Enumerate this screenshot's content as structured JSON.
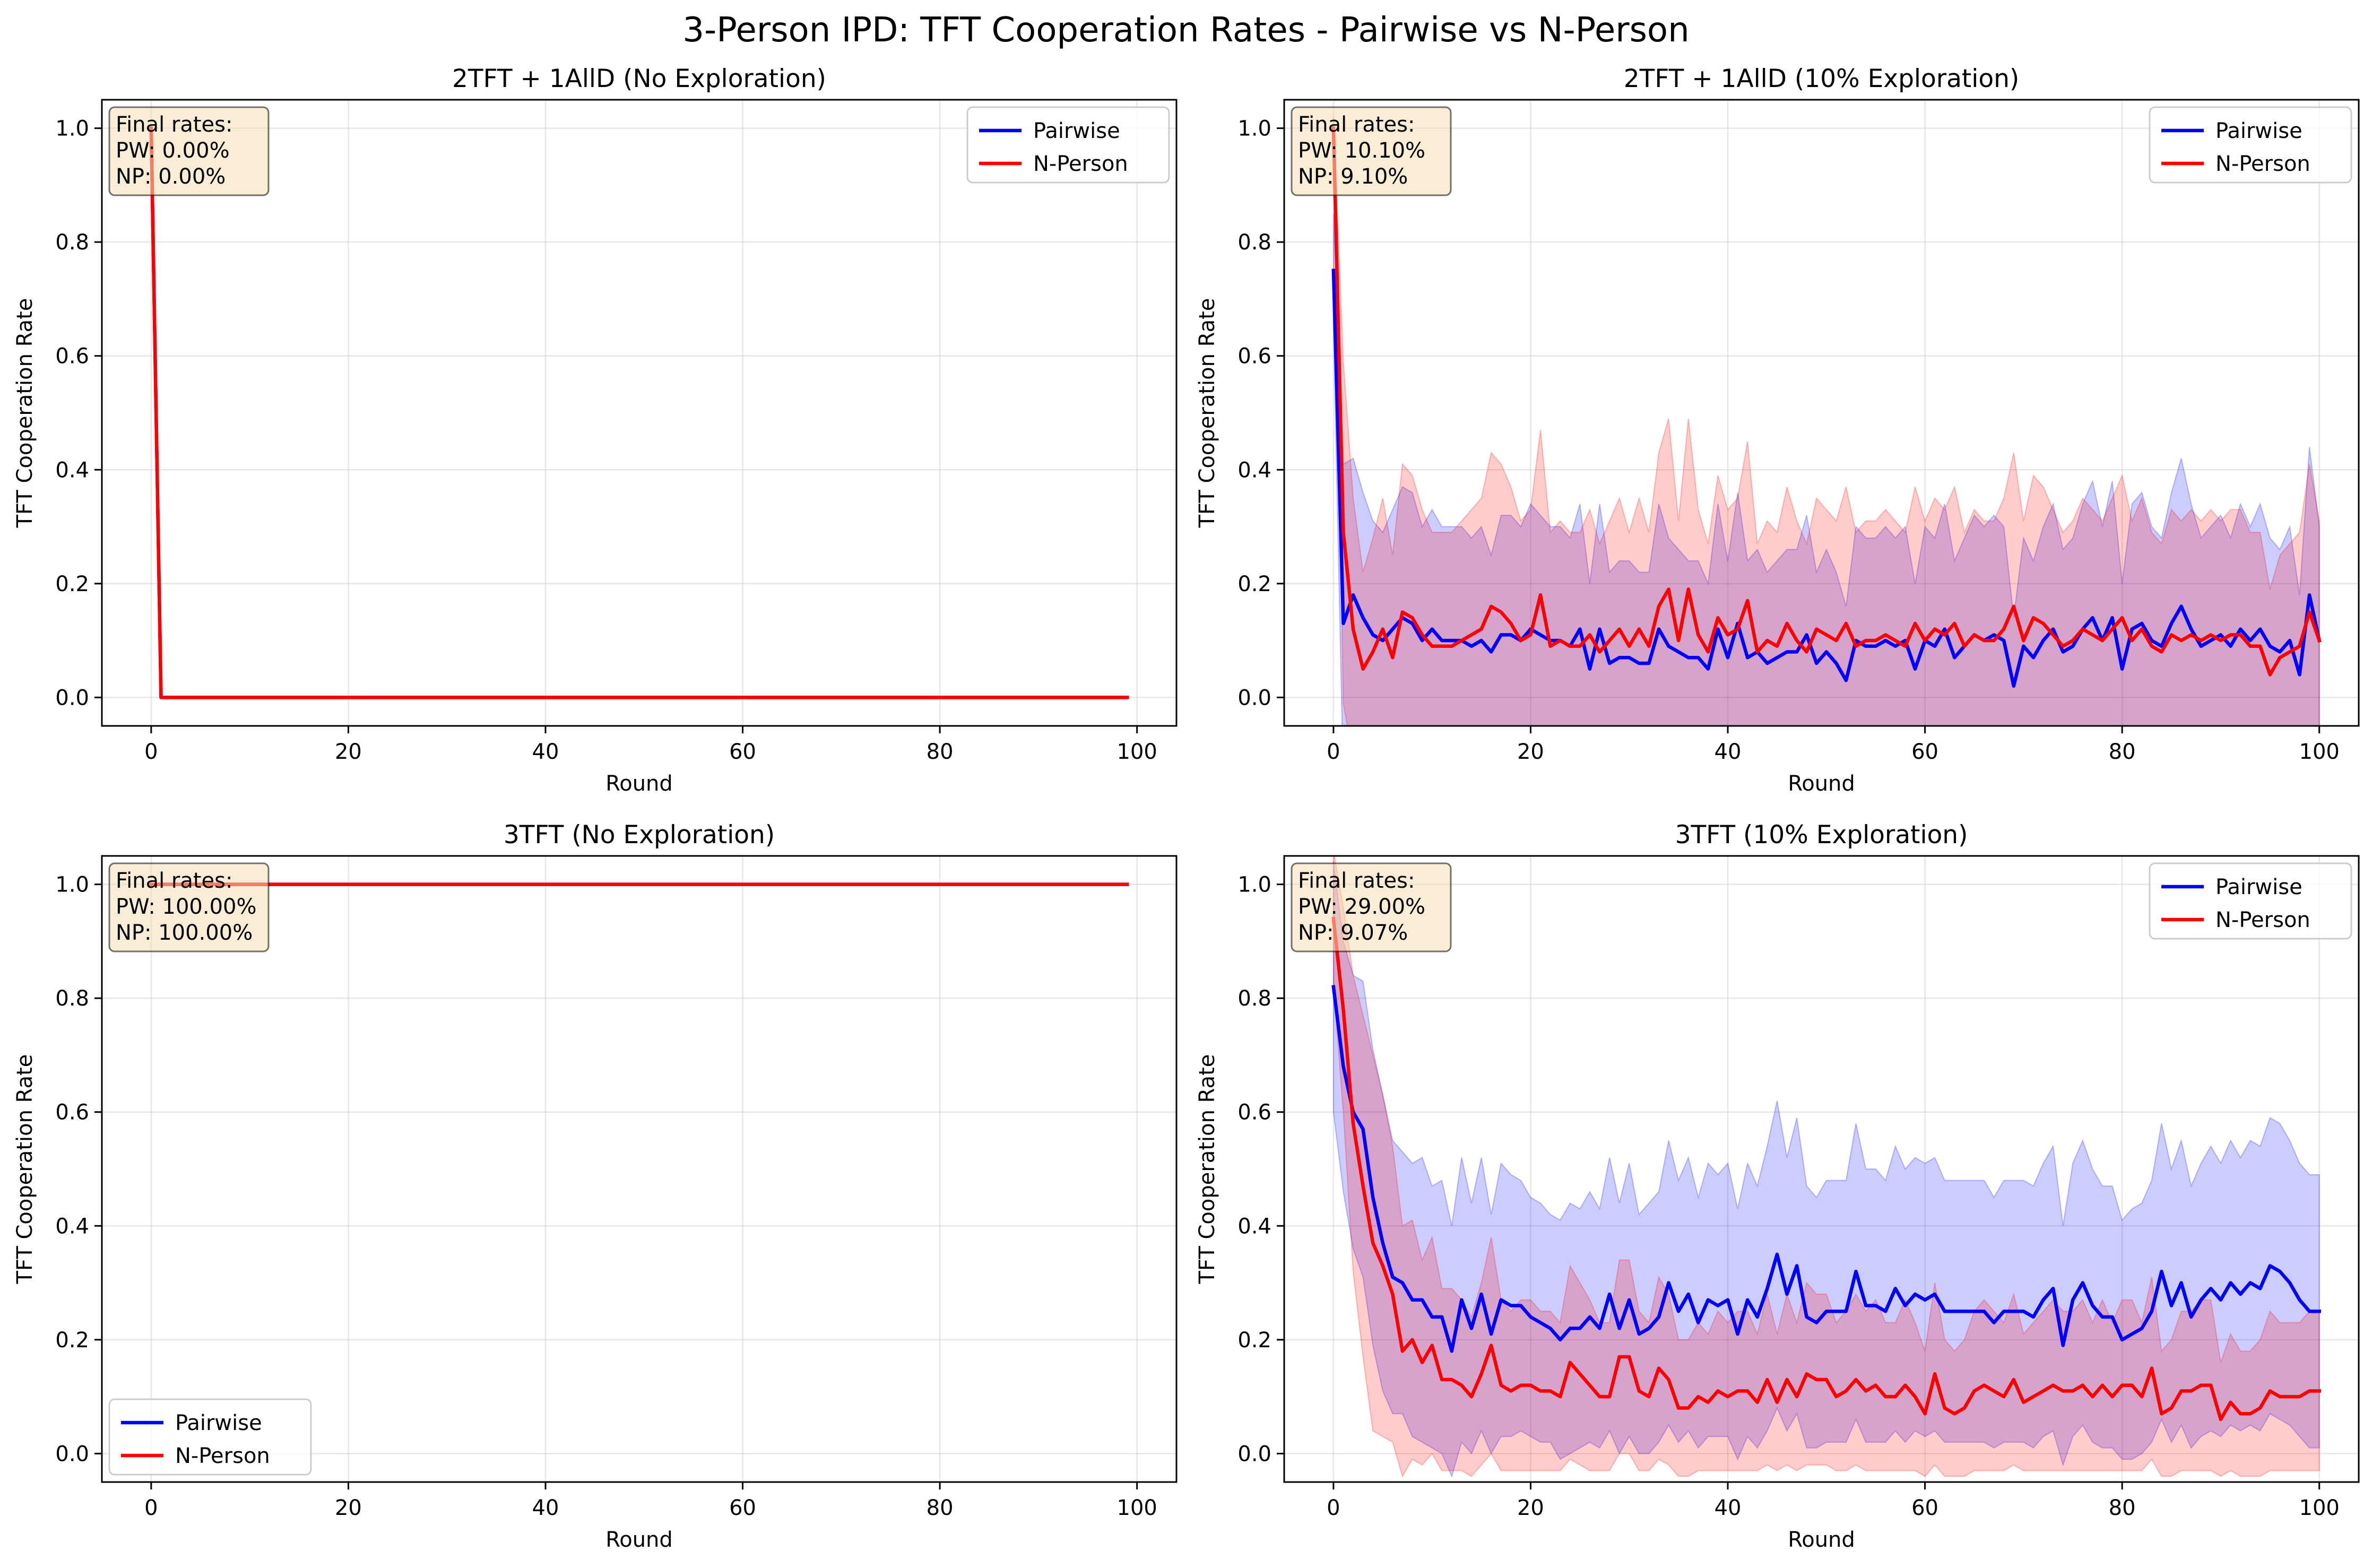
{
  "figure": {
    "suptitle": "3-Person IPD: TFT Cooperation Rates - Pairwise vs N-Person"
  },
  "colors": {
    "pairwise": "#0000ff",
    "nperson": "#ff0000",
    "pairwise_band": "#0000ff",
    "nperson_band": "#ff0000",
    "annotation_box": "#f5deb3",
    "grid": "#b0b0b0"
  },
  "chart_data": [
    {
      "type": "line",
      "title": "2TFT + 1AllD (No Exploration)",
      "xlabel": "Round",
      "ylabel": "TFT Cooperation Rate",
      "xlim": [
        -5,
        104
      ],
      "ylim": [
        -0.05,
        1.05
      ],
      "xticks": [
        0,
        20,
        40,
        60,
        80,
        100
      ],
      "yticks": [
        0.0,
        0.2,
        0.4,
        0.6,
        0.8,
        1.0
      ],
      "grid": true,
      "legend": {
        "position": "upper right",
        "entries": [
          "Pairwise",
          "N-Person"
        ]
      },
      "annotation": [
        "Final rates:",
        "PW: 0.00%",
        "NP: 0.00%"
      ],
      "series": [
        {
          "name": "Pairwise",
          "shape": "drop",
          "start": 1.0,
          "end": 0.0,
          "bands": false
        },
        {
          "name": "N-Person",
          "shape": "drop",
          "start": 1.0,
          "end": 0.0,
          "bands": false
        }
      ]
    },
    {
      "type": "line",
      "title": "2TFT + 1AllD (10% Exploration)",
      "xlabel": "Round",
      "ylabel": "TFT Cooperation Rate",
      "xlim": [
        -5,
        104
      ],
      "ylim": [
        -0.05,
        1.05
      ],
      "xticks": [
        0,
        20,
        40,
        60,
        80,
        100
      ],
      "yticks": [
        0.0,
        0.2,
        0.4,
        0.6,
        0.8,
        1.0
      ],
      "grid": true,
      "legend": {
        "position": "upper right",
        "entries": [
          "Pairwise",
          "N-Person"
        ]
      },
      "annotation": [
        "Final rates:",
        "PW: 10.10%",
        "NP: 9.10%"
      ],
      "series": [
        {
          "name": "Pairwise",
          "y": [
            0.75,
            0.13,
            0.18,
            0.14,
            0.11,
            0.1,
            0.12,
            0.14,
            0.13,
            0.1,
            0.12,
            0.1,
            0.1,
            0.1,
            0.09,
            0.1,
            0.08,
            0.11,
            0.11,
            0.1,
            0.12,
            0.11,
            0.1,
            0.1,
            0.09,
            0.12,
            0.05,
            0.12,
            0.06,
            0.07,
            0.07,
            0.06,
            0.06,
            0.12,
            0.09,
            0.08,
            0.07,
            0.07,
            0.05,
            0.12,
            0.07,
            0.13,
            0.07,
            0.08,
            0.06,
            0.07,
            0.08,
            0.08,
            0.11,
            0.06,
            0.08,
            0.06,
            0.03,
            0.1,
            0.09,
            0.09,
            0.1,
            0.09,
            0.1,
            0.05,
            0.1,
            0.09,
            0.12,
            0.07,
            0.09,
            0.11,
            0.1,
            0.11,
            0.1,
            0.02,
            0.09,
            0.07,
            0.1,
            0.12,
            0.08,
            0.09,
            0.12,
            0.14,
            0.1,
            0.14,
            0.05,
            0.12,
            0.13,
            0.1,
            0.09,
            0.13,
            0.16,
            0.12,
            0.09,
            0.1,
            0.11,
            0.09,
            0.12,
            0.1,
            0.12,
            0.09,
            0.08,
            0.1,
            0.04,
            0.18,
            0.1
          ],
          "sd": [
            0.1,
            0.28,
            0.24,
            0.22,
            0.2,
            0.19,
            0.21,
            0.23,
            0.23,
            0.2,
            0.21,
            0.2,
            0.2,
            0.2,
            0.19,
            0.2,
            0.17,
            0.21,
            0.21,
            0.2,
            0.22,
            0.21,
            0.2,
            0.2,
            0.19,
            0.22,
            0.15,
            0.22,
            0.16,
            0.17,
            0.17,
            0.16,
            0.16,
            0.22,
            0.19,
            0.18,
            0.17,
            0.17,
            0.15,
            0.22,
            0.17,
            0.23,
            0.17,
            0.18,
            0.16,
            0.17,
            0.18,
            0.18,
            0.21,
            0.16,
            0.18,
            0.16,
            0.13,
            0.2,
            0.19,
            0.19,
            0.2,
            0.19,
            0.2,
            0.15,
            0.2,
            0.19,
            0.22,
            0.17,
            0.19,
            0.21,
            0.2,
            0.21,
            0.2,
            0.12,
            0.19,
            0.17,
            0.2,
            0.22,
            0.18,
            0.19,
            0.22,
            0.24,
            0.2,
            0.24,
            0.15,
            0.22,
            0.23,
            0.2,
            0.19,
            0.23,
            0.26,
            0.22,
            0.19,
            0.2,
            0.21,
            0.19,
            0.22,
            0.2,
            0.22,
            0.19,
            0.18,
            0.2,
            0.14,
            0.26,
            0.2
          ]
        },
        {
          "name": "N-Person",
          "y": [
            1.0,
            0.29,
            0.12,
            0.05,
            0.08,
            0.12,
            0.07,
            0.15,
            0.14,
            0.11,
            0.09,
            0.09,
            0.09,
            0.1,
            0.11,
            0.12,
            0.16,
            0.15,
            0.13,
            0.1,
            0.11,
            0.18,
            0.09,
            0.1,
            0.09,
            0.09,
            0.11,
            0.08,
            0.1,
            0.12,
            0.09,
            0.12,
            0.09,
            0.16,
            0.19,
            0.1,
            0.19,
            0.11,
            0.08,
            0.14,
            0.11,
            0.12,
            0.17,
            0.08,
            0.1,
            0.09,
            0.13,
            0.1,
            0.08,
            0.12,
            0.11,
            0.1,
            0.13,
            0.09,
            0.1,
            0.1,
            0.11,
            0.1,
            0.09,
            0.13,
            0.1,
            0.12,
            0.11,
            0.13,
            0.09,
            0.11,
            0.1,
            0.1,
            0.12,
            0.16,
            0.1,
            0.14,
            0.13,
            0.11,
            0.09,
            0.1,
            0.12,
            0.11,
            0.1,
            0.12,
            0.14,
            0.1,
            0.12,
            0.09,
            0.08,
            0.11,
            0.1,
            0.11,
            0.1,
            0.11,
            0.1,
            0.11,
            0.11,
            0.09,
            0.09,
            0.04,
            0.07,
            0.08,
            0.09,
            0.15,
            0.1
          ],
          "sd": [
            0.02,
            0.3,
            0.23,
            0.17,
            0.2,
            0.23,
            0.18,
            0.26,
            0.25,
            0.22,
            0.2,
            0.2,
            0.2,
            0.21,
            0.22,
            0.23,
            0.27,
            0.26,
            0.24,
            0.21,
            0.22,
            0.29,
            0.2,
            0.21,
            0.2,
            0.2,
            0.22,
            0.19,
            0.21,
            0.23,
            0.2,
            0.23,
            0.2,
            0.27,
            0.3,
            0.21,
            0.3,
            0.22,
            0.19,
            0.25,
            0.22,
            0.23,
            0.28,
            0.19,
            0.21,
            0.2,
            0.24,
            0.21,
            0.19,
            0.23,
            0.22,
            0.21,
            0.24,
            0.2,
            0.21,
            0.21,
            0.22,
            0.21,
            0.2,
            0.24,
            0.21,
            0.23,
            0.22,
            0.24,
            0.2,
            0.22,
            0.21,
            0.21,
            0.23,
            0.27,
            0.21,
            0.25,
            0.24,
            0.22,
            0.2,
            0.21,
            0.23,
            0.22,
            0.21,
            0.23,
            0.25,
            0.21,
            0.23,
            0.2,
            0.19,
            0.22,
            0.21,
            0.22,
            0.21,
            0.22,
            0.21,
            0.22,
            0.22,
            0.2,
            0.2,
            0.15,
            0.18,
            0.19,
            0.2,
            0.26,
            0.21
          ]
        }
      ]
    },
    {
      "type": "line",
      "title": "3TFT (No Exploration)",
      "xlabel": "Round",
      "ylabel": "TFT Cooperation Rate",
      "xlim": [
        -5,
        104
      ],
      "ylim": [
        -0.05,
        1.05
      ],
      "xticks": [
        0,
        20,
        40,
        60,
        80,
        100
      ],
      "yticks": [
        0.0,
        0.2,
        0.4,
        0.6,
        0.8,
        1.0
      ],
      "grid": true,
      "legend": {
        "position": "lower left",
        "entries": [
          "Pairwise",
          "N-Person"
        ]
      },
      "annotation": [
        "Final rates:",
        "PW: 100.00%",
        "NP: 100.00%"
      ],
      "series": [
        {
          "name": "Pairwise",
          "shape": "flat",
          "start": 1.0,
          "end": 1.0,
          "bands": false
        },
        {
          "name": "N-Person",
          "shape": "flat",
          "start": 1.0,
          "end": 1.0,
          "bands": false
        }
      ]
    },
    {
      "type": "line",
      "title": "3TFT (10% Exploration)",
      "xlabel": "Round",
      "ylabel": "TFT Cooperation Rate",
      "xlim": [
        -5,
        104
      ],
      "ylim": [
        -0.05,
        1.05
      ],
      "xticks": [
        0,
        20,
        40,
        60,
        80,
        100
      ],
      "yticks": [
        0.0,
        0.2,
        0.4,
        0.6,
        0.8,
        1.0
      ],
      "grid": true,
      "legend": {
        "position": "upper right",
        "entries": [
          "Pairwise",
          "N-Person"
        ]
      },
      "annotation": [
        "Final rates:",
        "PW: 29.00%",
        "NP: 9.07%"
      ],
      "series": [
        {
          "name": "Pairwise",
          "y": [
            0.82,
            0.68,
            0.6,
            0.57,
            0.45,
            0.37,
            0.31,
            0.3,
            0.27,
            0.27,
            0.24,
            0.24,
            0.18,
            0.27,
            0.22,
            0.28,
            0.21,
            0.27,
            0.26,
            0.26,
            0.24,
            0.23,
            0.22,
            0.2,
            0.22,
            0.22,
            0.24,
            0.22,
            0.28,
            0.22,
            0.27,
            0.21,
            0.22,
            0.24,
            0.3,
            0.25,
            0.28,
            0.23,
            0.27,
            0.26,
            0.27,
            0.21,
            0.27,
            0.24,
            0.29,
            0.35,
            0.28,
            0.33,
            0.24,
            0.23,
            0.25,
            0.25,
            0.25,
            0.32,
            0.26,
            0.26,
            0.25,
            0.29,
            0.26,
            0.28,
            0.27,
            0.28,
            0.25,
            0.25,
            0.25,
            0.25,
            0.25,
            0.23,
            0.25,
            0.25,
            0.25,
            0.24,
            0.27,
            0.29,
            0.19,
            0.27,
            0.3,
            0.26,
            0.24,
            0.24,
            0.2,
            0.21,
            0.22,
            0.25,
            0.32,
            0.26,
            0.3,
            0.24,
            0.27,
            0.29,
            0.27,
            0.3,
            0.28,
            0.3,
            0.29,
            0.33,
            0.32,
            0.3,
            0.27,
            0.25,
            0.25
          ],
          "sd": [
            0.22,
            0.22,
            0.24,
            0.26,
            0.26,
            0.26,
            0.24,
            0.23,
            0.24,
            0.25,
            0.23,
            0.24,
            0.22,
            0.25,
            0.22,
            0.24,
            0.21,
            0.24,
            0.23,
            0.22,
            0.21,
            0.21,
            0.2,
            0.21,
            0.22,
            0.21,
            0.22,
            0.21,
            0.24,
            0.22,
            0.24,
            0.21,
            0.22,
            0.22,
            0.25,
            0.23,
            0.24,
            0.22,
            0.24,
            0.23,
            0.24,
            0.22,
            0.24,
            0.23,
            0.25,
            0.27,
            0.24,
            0.26,
            0.23,
            0.22,
            0.23,
            0.23,
            0.23,
            0.26,
            0.24,
            0.24,
            0.23,
            0.25,
            0.24,
            0.24,
            0.24,
            0.24,
            0.23,
            0.23,
            0.23,
            0.23,
            0.23,
            0.22,
            0.23,
            0.23,
            0.23,
            0.23,
            0.24,
            0.25,
            0.21,
            0.24,
            0.25,
            0.24,
            0.23,
            0.23,
            0.21,
            0.22,
            0.22,
            0.23,
            0.26,
            0.24,
            0.25,
            0.23,
            0.24,
            0.25,
            0.24,
            0.25,
            0.24,
            0.25,
            0.25,
            0.26,
            0.26,
            0.25,
            0.24,
            0.24,
            0.24
          ]
        },
        {
          "name": "N-Person",
          "y": [
            0.94,
            0.78,
            0.58,
            0.47,
            0.37,
            0.33,
            0.28,
            0.18,
            0.2,
            0.16,
            0.19,
            0.13,
            0.13,
            0.12,
            0.1,
            0.14,
            0.19,
            0.12,
            0.11,
            0.12,
            0.12,
            0.11,
            0.11,
            0.1,
            0.16,
            0.14,
            0.12,
            0.1,
            0.1,
            0.17,
            0.17,
            0.11,
            0.1,
            0.15,
            0.13,
            0.08,
            0.08,
            0.1,
            0.09,
            0.11,
            0.1,
            0.11,
            0.11,
            0.09,
            0.13,
            0.09,
            0.13,
            0.1,
            0.14,
            0.13,
            0.13,
            0.1,
            0.11,
            0.13,
            0.11,
            0.12,
            0.1,
            0.1,
            0.12,
            0.1,
            0.07,
            0.14,
            0.08,
            0.07,
            0.08,
            0.11,
            0.12,
            0.11,
            0.1,
            0.13,
            0.09,
            0.1,
            0.11,
            0.12,
            0.11,
            0.11,
            0.12,
            0.1,
            0.12,
            0.1,
            0.12,
            0.12,
            0.1,
            0.15,
            0.07,
            0.08,
            0.11,
            0.11,
            0.12,
            0.12,
            0.06,
            0.09,
            0.07,
            0.07,
            0.08,
            0.11,
            0.1,
            0.1,
            0.1,
            0.11,
            0.11
          ],
          "sd": [
            0.12,
            0.18,
            0.26,
            0.3,
            0.33,
            0.3,
            0.26,
            0.22,
            0.21,
            0.18,
            0.19,
            0.16,
            0.16,
            0.15,
            0.14,
            0.16,
            0.19,
            0.15,
            0.14,
            0.15,
            0.15,
            0.14,
            0.14,
            0.13,
            0.17,
            0.16,
            0.15,
            0.13,
            0.13,
            0.17,
            0.17,
            0.14,
            0.13,
            0.16,
            0.15,
            0.12,
            0.12,
            0.13,
            0.12,
            0.14,
            0.13,
            0.14,
            0.14,
            0.12,
            0.15,
            0.12,
            0.15,
            0.13,
            0.16,
            0.15,
            0.15,
            0.13,
            0.14,
            0.15,
            0.14,
            0.15,
            0.13,
            0.13,
            0.15,
            0.13,
            0.11,
            0.16,
            0.12,
            0.11,
            0.12,
            0.14,
            0.15,
            0.14,
            0.13,
            0.15,
            0.12,
            0.13,
            0.14,
            0.15,
            0.14,
            0.14,
            0.15,
            0.13,
            0.15,
            0.13,
            0.15,
            0.15,
            0.13,
            0.16,
            0.11,
            0.12,
            0.14,
            0.14,
            0.15,
            0.15,
            0.1,
            0.12,
            0.11,
            0.11,
            0.12,
            0.14,
            0.13,
            0.13,
            0.13,
            0.14,
            0.14
          ]
        }
      ]
    }
  ]
}
